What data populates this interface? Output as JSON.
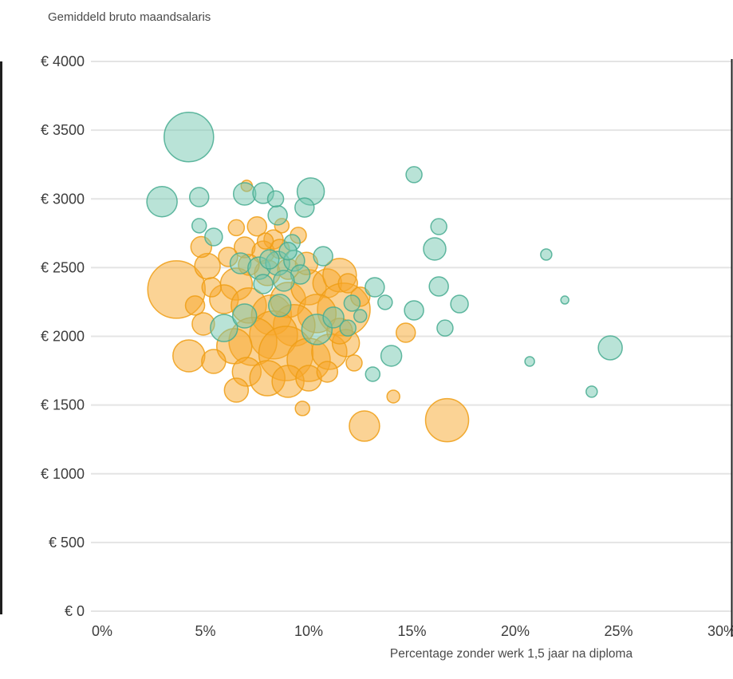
{
  "chart_data": {
    "type": "bubble",
    "title": "Gemiddeld bruto maandsalaris",
    "xlabel": "Percentage zonder werk 1,5 jaar na diploma",
    "ylabel": "Gemiddeld bruto maandsalaris",
    "xlim": [
      0,
      30
    ],
    "ylim": [
      0,
      4000
    ],
    "x_ticks": [
      {
        "v": 0,
        "label": "0%"
      },
      {
        "v": 5,
        "label": "5%"
      },
      {
        "v": 10,
        "label": "10%"
      },
      {
        "v": 15,
        "label": "15%"
      },
      {
        "v": 20,
        "label": "20%"
      },
      {
        "v": 25,
        "label": "25%"
      },
      {
        "v": 30,
        "label": "30%"
      }
    ],
    "y_ticks": [
      {
        "v": 0,
        "label": "€ 0"
      },
      {
        "v": 500,
        "label": "€ 500"
      },
      {
        "v": 1000,
        "label": "€ 1000"
      },
      {
        "v": 1500,
        "label": "€ 1500"
      },
      {
        "v": 2000,
        "label": "€ 2000"
      },
      {
        "v": 2500,
        "label": "€ 2500"
      },
      {
        "v": 3000,
        "label": "€ 3000"
      },
      {
        "v": 3500,
        "label": "€ 3500"
      },
      {
        "v": 4000,
        "label": "€ 4000"
      }
    ],
    "grid": "horizontal",
    "legend_position": "none",
    "r_unit": "px",
    "colors": {
      "grid": "#e4e4e4",
      "axis_border": "#1f1f1f",
      "text": "#3d3d3d",
      "orange": "#f5a623",
      "teal": "#57b79b"
    },
    "series": [
      {
        "name": "orange",
        "fill": "#f7a82b",
        "stroke": "#ef9d14",
        "fill_opacity": 0.5,
        "points": [
          [
            3.6,
            2340,
            36
          ],
          [
            5.1,
            2510,
            16
          ],
          [
            4.8,
            2650,
            13
          ],
          [
            6.5,
            2790,
            10
          ],
          [
            7.5,
            2800,
            12
          ],
          [
            8.3,
            2705,
            12
          ],
          [
            6.9,
            2647,
            13
          ],
          [
            7.8,
            2612,
            14
          ],
          [
            8.6,
            2636,
            12
          ],
          [
            6.5,
            2380,
            20
          ],
          [
            5.9,
            2270,
            18
          ],
          [
            7.1,
            2224,
            22
          ],
          [
            8.2,
            2155,
            25
          ],
          [
            9.0,
            2265,
            22
          ],
          [
            10.0,
            2357,
            22
          ],
          [
            10.9,
            2386,
            18
          ],
          [
            11.5,
            2445,
            21
          ],
          [
            11.7,
            2195,
            33
          ],
          [
            10.4,
            2166,
            24
          ],
          [
            9.3,
            2080,
            26
          ],
          [
            8.3,
            2010,
            30
          ],
          [
            7.3,
            1962,
            30
          ],
          [
            6.4,
            1928,
            22
          ],
          [
            8.9,
            1875,
            34
          ],
          [
            10.0,
            1829,
            27
          ],
          [
            11.0,
            1887,
            22
          ],
          [
            11.8,
            1951,
            17
          ],
          [
            7.0,
            1742,
            18
          ],
          [
            8.0,
            1695,
            22
          ],
          [
            9.0,
            1672,
            20
          ],
          [
            10.0,
            1695,
            16
          ],
          [
            10.9,
            1742,
            13
          ],
          [
            6.5,
            1608,
            15
          ],
          [
            9.7,
            1475,
            9
          ],
          [
            12.7,
            1347,
            19
          ],
          [
            16.7,
            1390,
            27
          ],
          [
            14.1,
            1562,
            8
          ],
          [
            14.7,
            2026,
            12
          ],
          [
            4.2,
            1858,
            20
          ],
          [
            5.4,
            1817,
            15
          ],
          [
            4.9,
            2090,
            14
          ],
          [
            8.0,
            2462,
            16
          ],
          [
            7.1,
            2520,
            13
          ],
          [
            9.0,
            2490,
            13
          ],
          [
            9.9,
            2530,
            14
          ],
          [
            11.9,
            2386,
            12
          ],
          [
            12.5,
            2288,
            12
          ],
          [
            7.0,
            3095,
            7
          ],
          [
            8.7,
            2805,
            9
          ],
          [
            9.5,
            2735,
            10
          ],
          [
            7.9,
            2693,
            10
          ],
          [
            6.1,
            2578,
            12
          ],
          [
            5.3,
            2357,
            12
          ],
          [
            4.5,
            2224,
            12
          ],
          [
            11.5,
            2038,
            16
          ],
          [
            12.2,
            1806,
            10
          ]
        ]
      },
      {
        "name": "teal",
        "fill": "#74c7b0",
        "stroke": "#47ab91",
        "fill_opacity": 0.5,
        "points": [
          [
            4.2,
            3450,
            31
          ],
          [
            2.9,
            2980,
            19
          ],
          [
            4.7,
            3013,
            12
          ],
          [
            6.9,
            3036,
            14
          ],
          [
            7.8,
            3042,
            13
          ],
          [
            10.1,
            3054,
            17
          ],
          [
            9.8,
            2937,
            12
          ],
          [
            15.1,
            3176,
            10
          ],
          [
            8.5,
            2880,
            12
          ],
          [
            4.7,
            2805,
            9
          ],
          [
            16.3,
            2798,
            10
          ],
          [
            5.4,
            2723,
            11
          ],
          [
            16.1,
            2636,
            14
          ],
          [
            21.5,
            2595,
            7
          ],
          [
            6.7,
            2531,
            13
          ],
          [
            7.6,
            2496,
            14
          ],
          [
            8.5,
            2531,
            15
          ],
          [
            9.3,
            2550,
            13
          ],
          [
            9.6,
            2450,
            12
          ],
          [
            10.7,
            2583,
            12
          ],
          [
            8.8,
            2404,
            13
          ],
          [
            7.8,
            2380,
            12
          ],
          [
            13.2,
            2357,
            12
          ],
          [
            16.3,
            2363,
            12
          ],
          [
            17.3,
            2235,
            11
          ],
          [
            15.1,
            2189,
            12
          ],
          [
            22.4,
            2264,
            5
          ],
          [
            13.7,
            2247,
            9
          ],
          [
            16.6,
            2060,
            10
          ],
          [
            24.6,
            1916,
            15
          ],
          [
            20.7,
            1817,
            6
          ],
          [
            23.7,
            1597,
            7
          ],
          [
            14.0,
            1858,
            13
          ],
          [
            13.1,
            1724,
            9
          ],
          [
            5.9,
            2060,
            17
          ],
          [
            6.9,
            2148,
            15
          ],
          [
            8.6,
            2224,
            14
          ],
          [
            10.4,
            2050,
            19
          ],
          [
            11.2,
            2137,
            13
          ],
          [
            11.9,
            2060,
            10
          ],
          [
            9.2,
            2682,
            10
          ],
          [
            8.4,
            3000,
            10
          ],
          [
            12.1,
            2241,
            10
          ],
          [
            12.5,
            2148,
            8
          ],
          [
            8.1,
            2560,
            12
          ],
          [
            9.0,
            2620,
            11
          ]
        ]
      }
    ]
  }
}
